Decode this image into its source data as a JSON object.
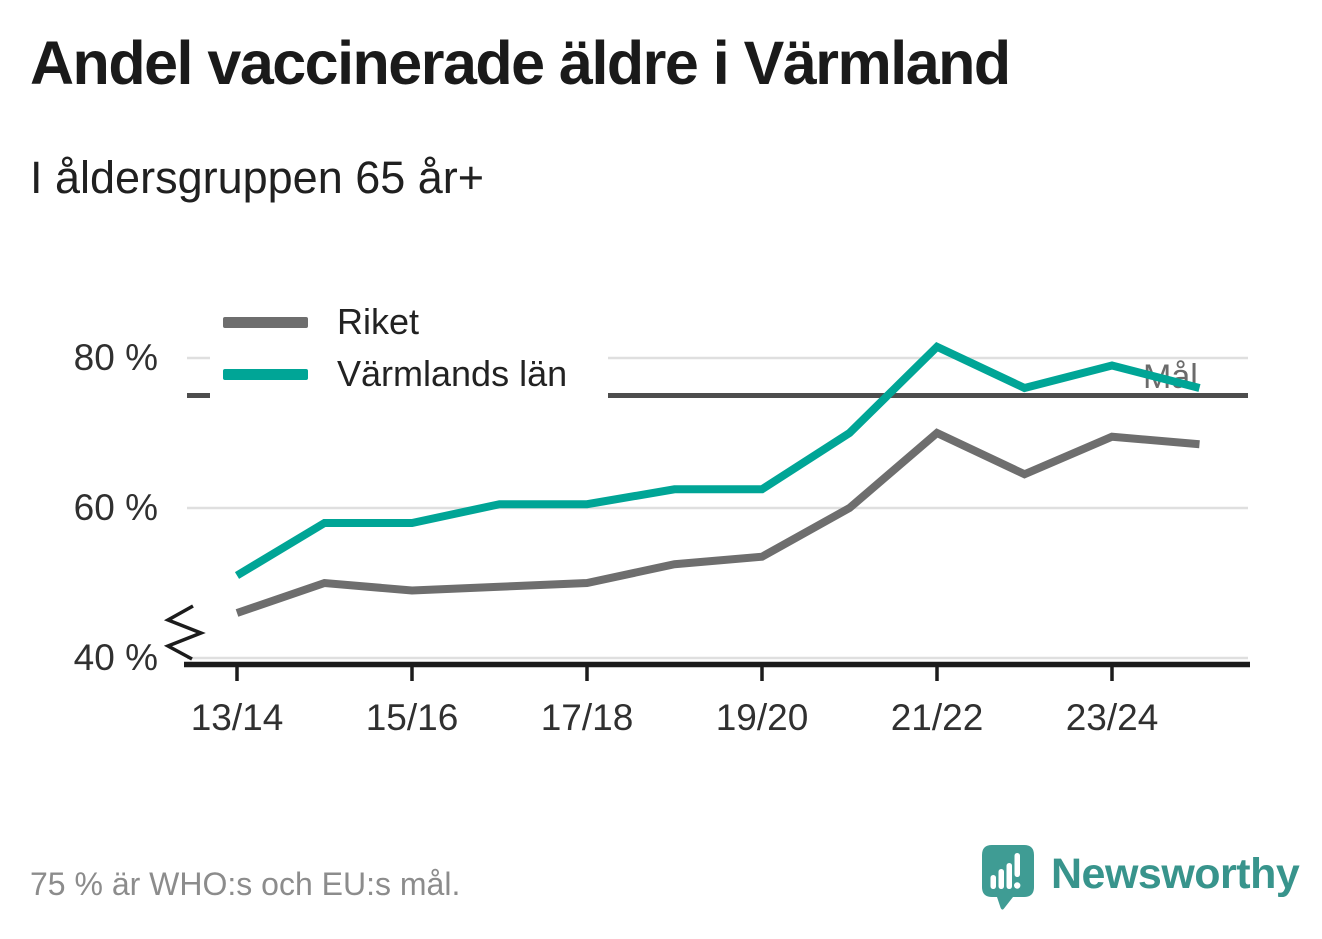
{
  "header": {
    "title": "Andel vaccinerade äldre i Värmland",
    "subtitle": "I åldersgruppen 65 år+"
  },
  "legend": {
    "items": [
      {
        "label": "Riket",
        "color": "#6e6e6e"
      },
      {
        "label": "Värmlands län",
        "color": "#00a596"
      }
    ]
  },
  "chart_data": {
    "type": "line",
    "title": "Andel vaccinerade äldre i Värmland",
    "subtitle": "I åldersgruppen 65 år+",
    "x": [
      "13/14",
      "14/15",
      "15/16",
      "16/17",
      "17/18",
      "18/19",
      "19/20",
      "20/21",
      "21/22",
      "22/23",
      "23/24",
      "24/25"
    ],
    "x_tick_labels": [
      "13/14",
      "15/16",
      "17/18",
      "19/20",
      "21/22",
      "23/24"
    ],
    "y_ticks": [
      40,
      60,
      80
    ],
    "y_tick_labels": [
      "40 %",
      "60 %",
      "80 %"
    ],
    "ylim": [
      40,
      84
    ],
    "y_axis_break": true,
    "grid": "horizontal",
    "legend_position": "top-left",
    "series": [
      {
        "name": "Riket",
        "color": "#6e6e6e",
        "values": [
          46,
          50,
          49,
          49.5,
          50,
          52.5,
          53.5,
          60,
          70,
          64.5,
          69.5,
          68.5
        ]
      },
      {
        "name": "Värmlands län",
        "color": "#00a596",
        "values": [
          51,
          58,
          58,
          60.5,
          60.5,
          62.5,
          62.5,
          70,
          81.5,
          76,
          79,
          76
        ]
      }
    ],
    "reference_line": {
      "label": "Mål",
      "value": 75,
      "color": "#4d4d4d"
    }
  },
  "footer": {
    "note": "75 % är WHO:s och EU:s mål.",
    "brand": "Newsworthy",
    "brand_color": "#38948c"
  }
}
